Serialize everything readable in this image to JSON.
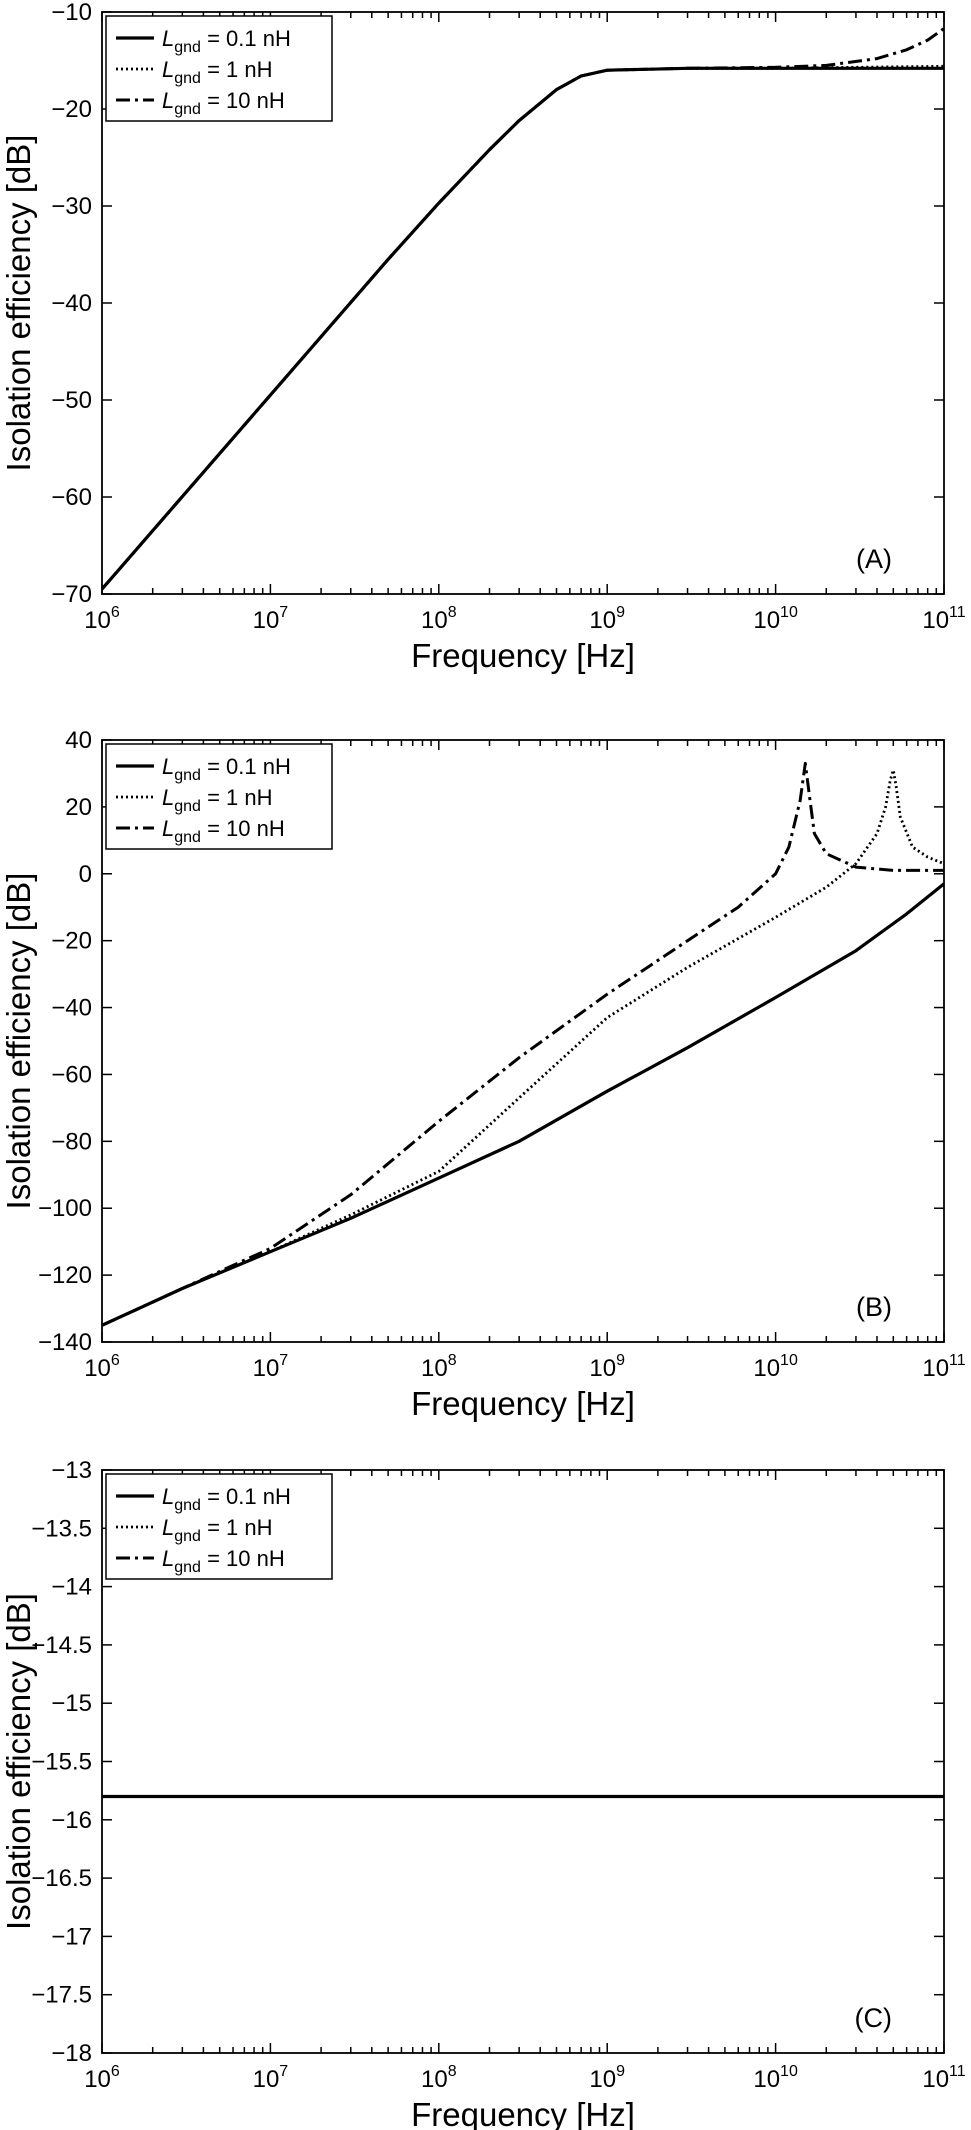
{
  "chart_data": [
    {
      "id": "A",
      "type": "line",
      "panel_label": "(A)",
      "xlabel": "Frequency [Hz]",
      "ylabel": "Isolation efficiency [dB]",
      "xscale": "log",
      "xlim": [
        1000000,
        100000000000
      ],
      "ylim": [
        -70,
        -10
      ],
      "xticks": [
        {
          "value": 1000000,
          "base": "10",
          "exp": "6"
        },
        {
          "value": 10000000,
          "base": "10",
          "exp": "7"
        },
        {
          "value": 100000000,
          "base": "10",
          "exp": "8"
        },
        {
          "value": 1000000000,
          "base": "10",
          "exp": "9"
        },
        {
          "value": 10000000000,
          "base": "10",
          "exp": "10"
        },
        {
          "value": 100000000000,
          "base": "10",
          "exp": "11"
        }
      ],
      "yticks": [
        {
          "value": -70,
          "label": "−70"
        },
        {
          "value": -60,
          "label": "−60"
        },
        {
          "value": -50,
          "label": "−50"
        },
        {
          "value": -40,
          "label": "−40"
        },
        {
          "value": -30,
          "label": "−30"
        },
        {
          "value": -20,
          "label": "−20"
        },
        {
          "value": -10,
          "label": "−10"
        }
      ],
      "legend": {
        "position": "top-left"
      },
      "series": [
        {
          "name": "L_gnd = 0.1 nH",
          "label_main": "L",
          "label_sub": "gnd",
          "label_rest": " = 0.1 nH",
          "style": "solid",
          "x": [
            1000000,
            10000000,
            50000000,
            100000000,
            200000000,
            300000000,
            500000000,
            700000000,
            1000000000,
            3000000000,
            10000000000,
            100000000000
          ],
          "y": [
            -69.5,
            -49.5,
            -35.5,
            -29.7,
            -24.2,
            -21.2,
            -18.0,
            -16.6,
            -16.0,
            -15.8,
            -15.8,
            -15.8
          ]
        },
        {
          "name": "L_gnd = 1 nH",
          "label_main": "L",
          "label_sub": "gnd",
          "label_rest": " = 1 nH",
          "style": "dotted",
          "x": [
            1000000,
            10000000,
            50000000,
            100000000,
            200000000,
            300000000,
            500000000,
            700000000,
            1000000000,
            3000000000,
            10000000000,
            30000000000,
            100000000000
          ],
          "y": [
            -69.5,
            -49.5,
            -35.5,
            -29.7,
            -24.2,
            -21.2,
            -18.0,
            -16.6,
            -16.0,
            -15.8,
            -15.8,
            -15.7,
            -15.6
          ]
        },
        {
          "name": "L_gnd = 10 nH",
          "label_main": "L",
          "label_sub": "gnd",
          "label_rest": " = 10 nH",
          "style": "dashdot",
          "x": [
            1000000,
            10000000,
            50000000,
            100000000,
            200000000,
            300000000,
            500000000,
            700000000,
            1000000000,
            3000000000,
            10000000000,
            20000000000,
            40000000000,
            60000000000,
            80000000000,
            100000000000
          ],
          "y": [
            -69.5,
            -49.5,
            -35.5,
            -29.7,
            -24.2,
            -21.2,
            -18.0,
            -16.6,
            -16.0,
            -15.8,
            -15.7,
            -15.5,
            -14.8,
            -13.9,
            -12.9,
            -11.7
          ]
        }
      ]
    },
    {
      "id": "B",
      "type": "line",
      "panel_label": "(B)",
      "xlabel": "Frequency [Hz]",
      "ylabel": "Isolation efficiency [dB]",
      "xscale": "log",
      "xlim": [
        1000000,
        100000000000
      ],
      "ylim": [
        -140,
        40
      ],
      "xticks": [
        {
          "value": 1000000,
          "base": "10",
          "exp": "6"
        },
        {
          "value": 10000000,
          "base": "10",
          "exp": "7"
        },
        {
          "value": 100000000,
          "base": "10",
          "exp": "8"
        },
        {
          "value": 1000000000,
          "base": "10",
          "exp": "9"
        },
        {
          "value": 10000000000,
          "base": "10",
          "exp": "10"
        },
        {
          "value": 100000000000,
          "base": "10",
          "exp": "11"
        }
      ],
      "yticks": [
        {
          "value": -140,
          "label": "−140"
        },
        {
          "value": -120,
          "label": "−120"
        },
        {
          "value": -100,
          "label": "−100"
        },
        {
          "value": -80,
          "label": "−80"
        },
        {
          "value": -60,
          "label": "−60"
        },
        {
          "value": -40,
          "label": "−40"
        },
        {
          "value": -20,
          "label": "−20"
        },
        {
          "value": 0,
          "label": "0"
        },
        {
          "value": 20,
          "label": "20"
        },
        {
          "value": 40,
          "label": "40"
        }
      ],
      "legend": {
        "position": "top-left"
      },
      "series": [
        {
          "name": "L_gnd = 0.1 nH",
          "label_main": "L",
          "label_sub": "gnd",
          "label_rest": " = 0.1 nH",
          "style": "solid",
          "x": [
            1000000,
            3000000,
            10000000,
            30000000,
            100000000,
            300000000,
            1000000000,
            3000000000,
            10000000000,
            30000000000,
            60000000000,
            100000000000
          ],
          "y": [
            -135,
            -124,
            -113,
            -103,
            -91,
            -80,
            -65,
            -52,
            -37,
            -23,
            -12,
            -3
          ]
        },
        {
          "name": "L_gnd = 1 nH",
          "label_main": "L",
          "label_sub": "gnd",
          "label_rest": " = 1 nH",
          "style": "dotted",
          "x": [
            1000000,
            3000000,
            10000000,
            30000000,
            100000000,
            300000000,
            1000000000,
            3000000000,
            10000000000,
            20000000000,
            30000000000,
            40000000000,
            45000000000,
            48000000000,
            50000000000,
            52000000000,
            55000000000,
            65000000000,
            80000000000,
            100000000000
          ],
          "y": [
            -135,
            -124,
            -113,
            -102,
            -89,
            -67,
            -43,
            -28,
            -13,
            -4,
            3,
            12,
            20,
            28,
            31,
            26,
            17,
            8,
            5,
            3
          ]
        },
        {
          "name": "L_gnd = 10 nH",
          "label_main": "L",
          "label_sub": "gnd",
          "label_rest": " = 10 nH",
          "style": "dashdot",
          "x": [
            1000000,
            3000000,
            10000000,
            30000000,
            100000000,
            300000000,
            1000000000,
            3000000000,
            6000000000,
            10000000000,
            12000000000,
            14000000000,
            15000000000,
            16000000000,
            17000000000,
            20000000000,
            30000000000,
            50000000000,
            100000000000
          ],
          "y": [
            -135,
            -124,
            -112,
            -96,
            -74,
            -55,
            -36,
            -20,
            -10,
            0,
            8,
            22,
            33,
            22,
            12,
            6,
            2,
            1,
            1
          ]
        }
      ]
    },
    {
      "id": "C",
      "type": "line",
      "panel_label": "(C)",
      "xlabel": "Frequency [Hz]",
      "ylabel": "Isolation efficiency [dB]",
      "xscale": "log",
      "xlim": [
        1000000,
        100000000000
      ],
      "ylim": [
        -18,
        -13
      ],
      "xticks": [
        {
          "value": 1000000,
          "base": "10",
          "exp": "6"
        },
        {
          "value": 10000000,
          "base": "10",
          "exp": "7"
        },
        {
          "value": 100000000,
          "base": "10",
          "exp": "8"
        },
        {
          "value": 1000000000,
          "base": "10",
          "exp": "9"
        },
        {
          "value": 10000000000,
          "base": "10",
          "exp": "10"
        },
        {
          "value": 100000000000,
          "base": "10",
          "exp": "11"
        }
      ],
      "yticks": [
        {
          "value": -18,
          "label": "−18"
        },
        {
          "value": -17.5,
          "label": "−17.5"
        },
        {
          "value": -17,
          "label": "−17"
        },
        {
          "value": -16.5,
          "label": "−16.5"
        },
        {
          "value": -16,
          "label": "−16"
        },
        {
          "value": -15.5,
          "label": "−15.5"
        },
        {
          "value": -15,
          "label": "−15"
        },
        {
          "value": -14.5,
          "label": "−14.5"
        },
        {
          "value": -14,
          "label": "−14"
        },
        {
          "value": -13.5,
          "label": "−13.5"
        },
        {
          "value": -13,
          "label": "−13"
        }
      ],
      "legend": {
        "position": "top-left"
      },
      "series": [
        {
          "name": "L_gnd = 0.1 nH",
          "label_main": "L",
          "label_sub": "gnd",
          "label_rest": " = 0.1 nH",
          "style": "solid",
          "x": [
            1000000,
            100000000000
          ],
          "y": [
            -15.8,
            -15.8
          ]
        },
        {
          "name": "L_gnd = 1 nH",
          "label_main": "L",
          "label_sub": "gnd",
          "label_rest": " = 1 nH",
          "style": "dotted",
          "x": [
            1000000,
            100000000000
          ],
          "y": [
            -15.8,
            -15.8
          ]
        },
        {
          "name": "L_gnd = 10 nH",
          "label_main": "L",
          "label_sub": "gnd",
          "label_rest": " = 10 nH",
          "style": "dashdot",
          "x": [
            1000000,
            100000000000
          ],
          "y": [
            -15.8,
            -15.8
          ]
        }
      ]
    }
  ]
}
